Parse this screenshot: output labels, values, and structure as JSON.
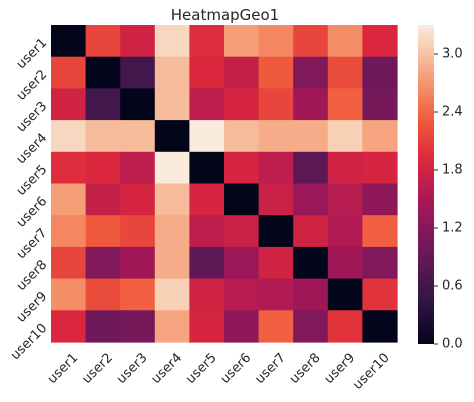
{
  "chart_data": {
    "type": "heatmap",
    "title": "HeatmapGeo1",
    "xlabel": "",
    "ylabel": "",
    "x_categories": [
      "user1",
      "user2",
      "user3",
      "user4",
      "user5",
      "user6",
      "user7",
      "user8",
      "user9",
      "user10"
    ],
    "y_categories": [
      "user1",
      "user2",
      "user3",
      "user4",
      "user5",
      "user6",
      "user7",
      "user8",
      "user9",
      "user10"
    ],
    "values": [
      [
        0.0,
        2.15,
        1.8,
        3.15,
        1.95,
        2.75,
        2.6,
        2.15,
        2.65,
        1.9
      ],
      [
        2.15,
        0.0,
        0.6,
        2.95,
        1.9,
        1.7,
        2.3,
        1.15,
        2.2,
        1.0
      ],
      [
        1.8,
        0.6,
        0.0,
        2.95,
        1.65,
        1.85,
        2.15,
        1.4,
        2.35,
        1.05
      ],
      [
        3.15,
        2.95,
        2.95,
        0.0,
        3.3,
        2.95,
        2.85,
        2.85,
        3.1,
        2.8
      ],
      [
        1.95,
        1.9,
        1.65,
        3.3,
        0.0,
        1.85,
        1.65,
        0.85,
        1.8,
        1.85
      ],
      [
        2.75,
        1.7,
        1.85,
        2.95,
        1.85,
        0.0,
        1.75,
        1.35,
        1.6,
        1.25
      ],
      [
        2.6,
        2.3,
        2.15,
        2.85,
        1.65,
        1.75,
        0.0,
        1.8,
        1.55,
        2.35
      ],
      [
        2.15,
        1.15,
        1.4,
        2.85,
        0.85,
        1.35,
        1.8,
        0.0,
        1.4,
        1.15
      ],
      [
        2.65,
        2.2,
        2.35,
        3.1,
        1.8,
        1.6,
        1.55,
        1.4,
        0.0,
        2.0
      ],
      [
        1.9,
        1.0,
        1.05,
        2.8,
        1.85,
        1.25,
        2.35,
        1.15,
        2.0,
        0.0
      ]
    ],
    "vmin": 0.0,
    "vmax": 3.3,
    "colormap": "rocket",
    "colorbar_ticks": [
      "0.0",
      "0.6",
      "1.2",
      "1.8",
      "2.4",
      "3.0"
    ],
    "grid": false
  }
}
